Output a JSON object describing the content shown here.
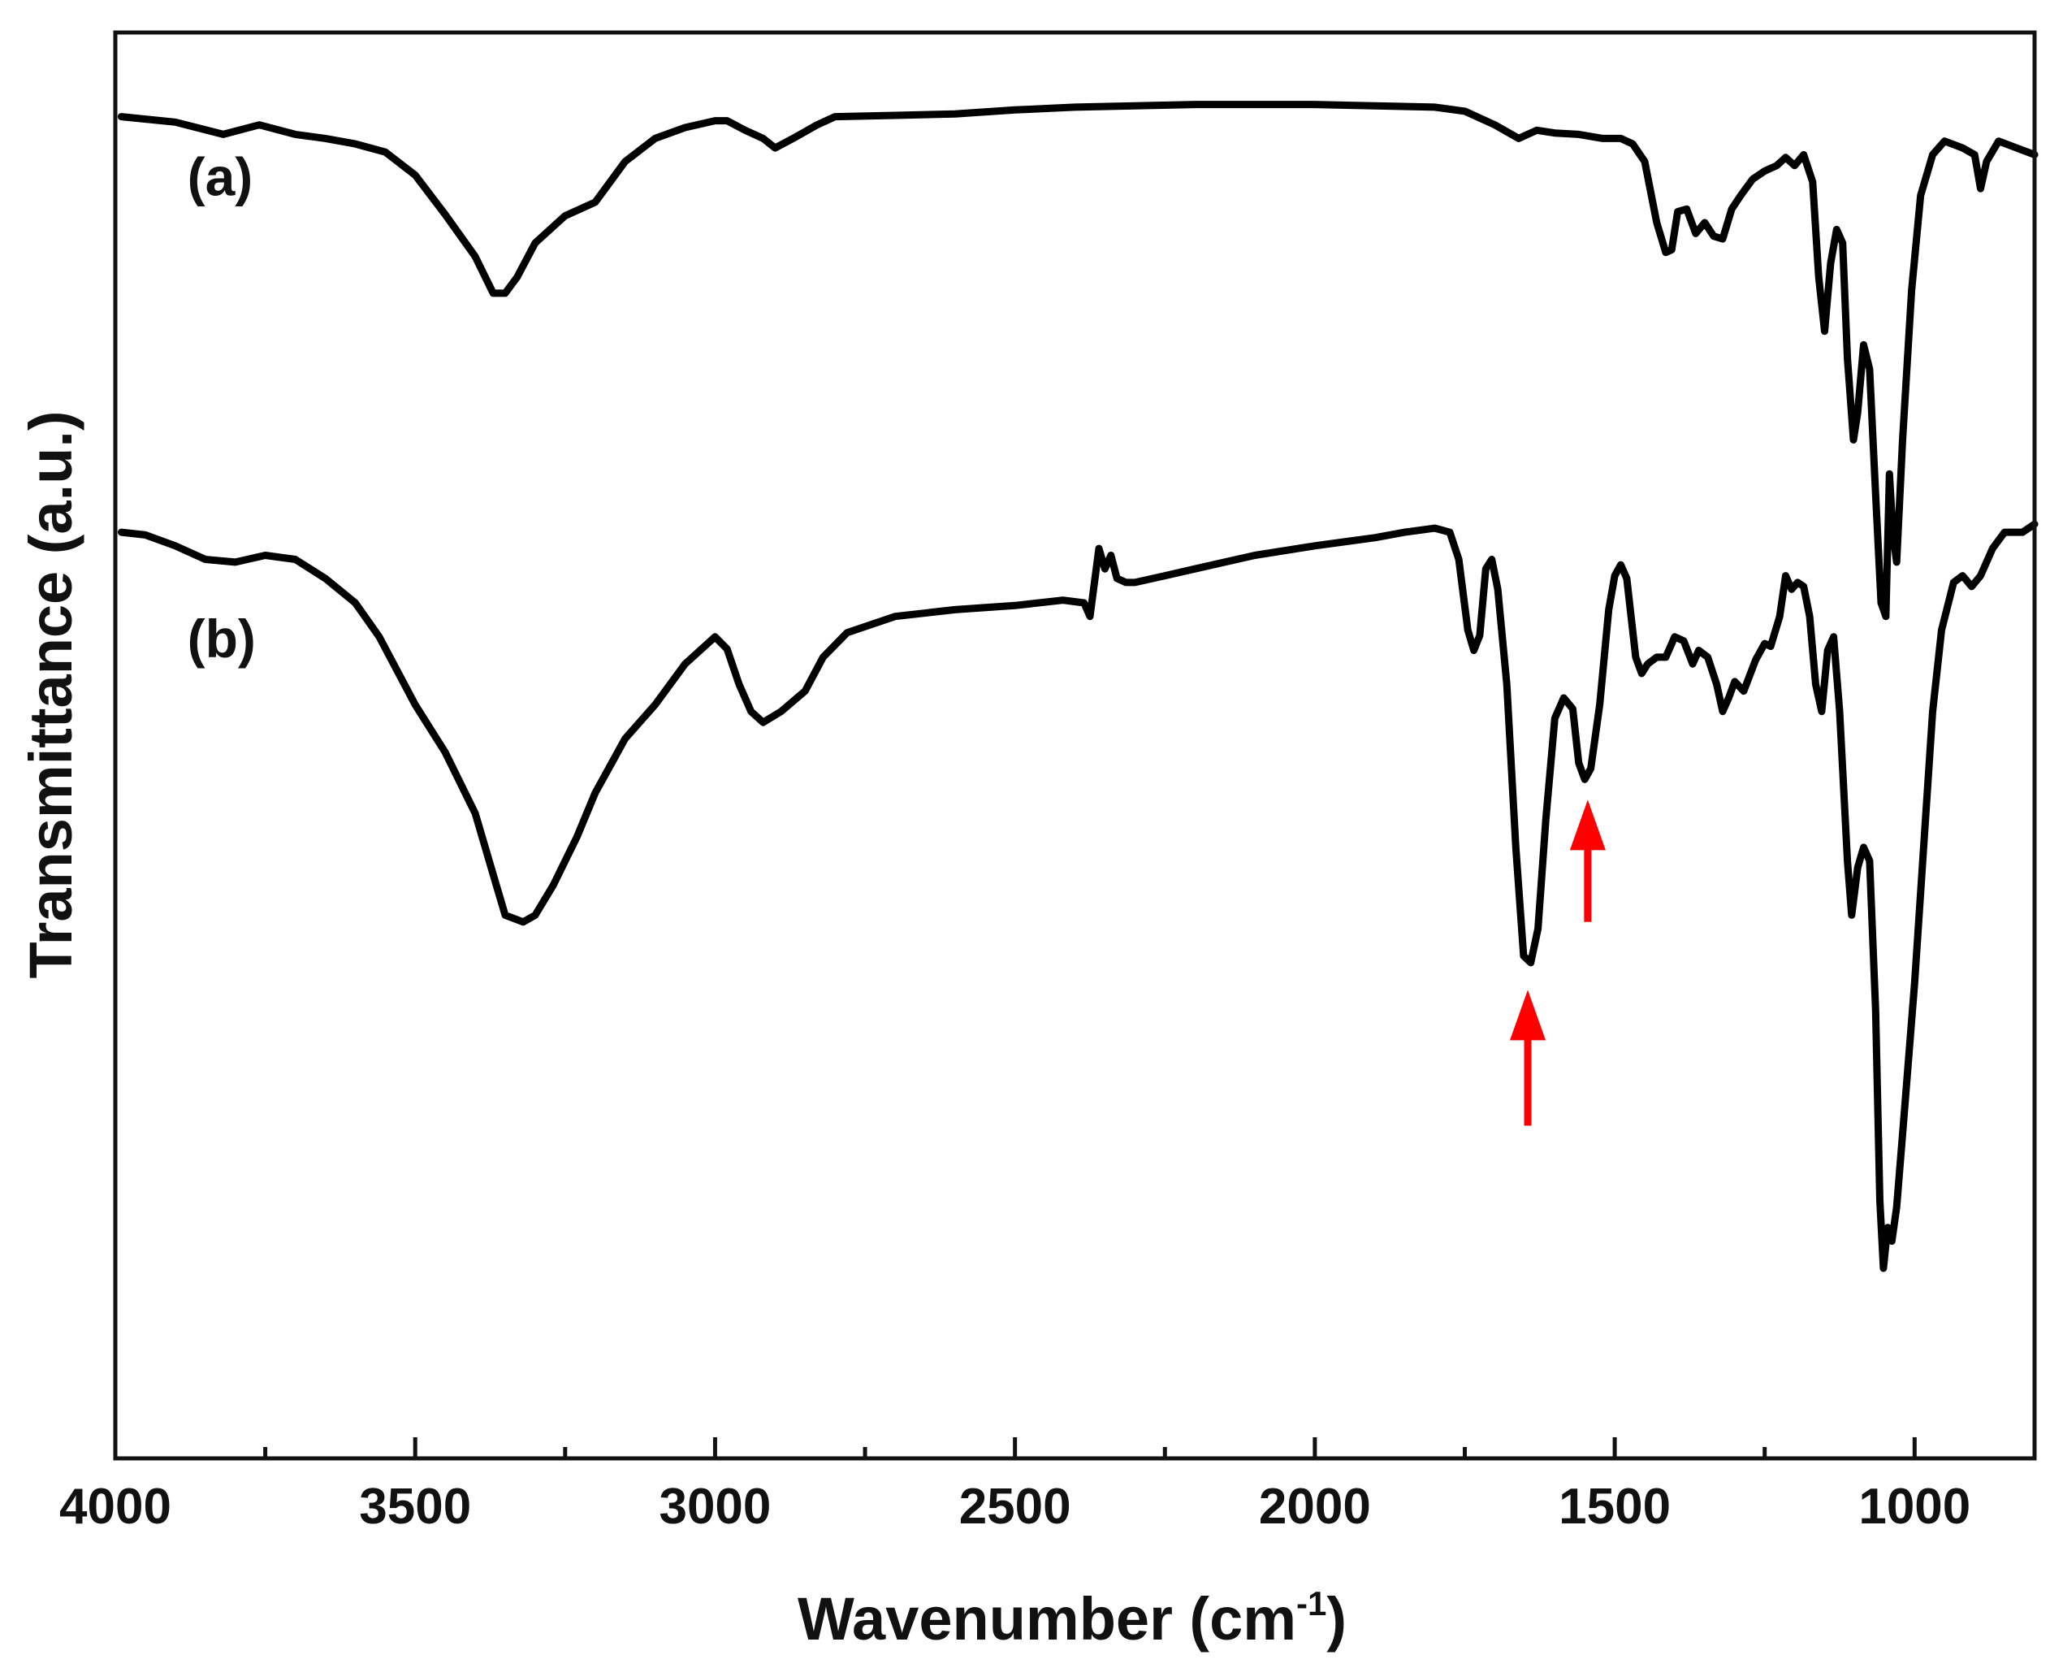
{
  "chart_data": {
    "type": "line",
    "title": "",
    "xlabel": "Wavenumber (cm",
    "xlabel_superscript": "-1",
    "xlabel_close": ")",
    "ylabel": "Transmittance (a.u.)",
    "xlim": [
      4000,
      800
    ],
    "x_reversed": true,
    "ylim": [
      -0.05,
      1.0
    ],
    "y_ticks_shown": false,
    "grid": false,
    "x_ticks": [
      {
        "value": 4000,
        "label": "4000"
      },
      {
        "value": 3500,
        "label": "3500"
      },
      {
        "value": 3000,
        "label": "3000"
      },
      {
        "value": 2500,
        "label": "2500"
      },
      {
        "value": 2000,
        "label": "2000"
      },
      {
        "value": 1500,
        "label": "1500"
      },
      {
        "value": 1000,
        "label": "1000"
      }
    ],
    "x_minor_ticks": [
      3750,
      3250,
      2750,
      2250,
      1750,
      1250
    ],
    "curve_labels": [
      {
        "text": "(a)",
        "x": 3880,
        "y": 0.88
      },
      {
        "text": "(b)",
        "x": 3880,
        "y": 0.54
      }
    ],
    "series": [
      {
        "id": "a",
        "color": "#000000",
        "points": [
          [
            3990,
            0.938
          ],
          [
            3900,
            0.934
          ],
          [
            3820,
            0.925
          ],
          [
            3760,
            0.932
          ],
          [
            3700,
            0.925
          ],
          [
            3650,
            0.922
          ],
          [
            3600,
            0.918
          ],
          [
            3550,
            0.912
          ],
          [
            3500,
            0.895
          ],
          [
            3450,
            0.866
          ],
          [
            3400,
            0.835
          ],
          [
            3370,
            0.808
          ],
          [
            3350,
            0.808
          ],
          [
            3330,
            0.82
          ],
          [
            3300,
            0.845
          ],
          [
            3250,
            0.865
          ],
          [
            3200,
            0.875
          ],
          [
            3150,
            0.905
          ],
          [
            3100,
            0.922
          ],
          [
            3050,
            0.93
          ],
          [
            3000,
            0.935
          ],
          [
            2980,
            0.935
          ],
          [
            2950,
            0.928
          ],
          [
            2920,
            0.922
          ],
          [
            2900,
            0.915
          ],
          [
            2870,
            0.922
          ],
          [
            2830,
            0.932
          ],
          [
            2800,
            0.938
          ],
          [
            2700,
            0.939
          ],
          [
            2600,
            0.94
          ],
          [
            2500,
            0.943
          ],
          [
            2400,
            0.945
          ],
          [
            2300,
            0.946
          ],
          [
            2200,
            0.947
          ],
          [
            2100,
            0.947
          ],
          [
            2000,
            0.947
          ],
          [
            1900,
            0.946
          ],
          [
            1800,
            0.945
          ],
          [
            1750,
            0.942
          ],
          [
            1700,
            0.932
          ],
          [
            1660,
            0.922
          ],
          [
            1630,
            0.928
          ],
          [
            1600,
            0.926
          ],
          [
            1560,
            0.925
          ],
          [
            1520,
            0.922
          ],
          [
            1490,
            0.922
          ],
          [
            1470,
            0.918
          ],
          [
            1450,
            0.905
          ],
          [
            1430,
            0.86
          ],
          [
            1415,
            0.838
          ],
          [
            1405,
            0.84
          ],
          [
            1395,
            0.868
          ],
          [
            1380,
            0.87
          ],
          [
            1365,
            0.852
          ],
          [
            1350,
            0.86
          ],
          [
            1335,
            0.85
          ],
          [
            1320,
            0.848
          ],
          [
            1305,
            0.87
          ],
          [
            1290,
            0.88
          ],
          [
            1270,
            0.892
          ],
          [
            1250,
            0.898
          ],
          [
            1230,
            0.902
          ],
          [
            1215,
            0.908
          ],
          [
            1200,
            0.902
          ],
          [
            1185,
            0.91
          ],
          [
            1170,
            0.89
          ],
          [
            1160,
            0.82
          ],
          [
            1150,
            0.78
          ],
          [
            1140,
            0.83
          ],
          [
            1130,
            0.855
          ],
          [
            1120,
            0.845
          ],
          [
            1112,
            0.76
          ],
          [
            1102,
            0.7
          ],
          [
            1095,
            0.72
          ],
          [
            1085,
            0.77
          ],
          [
            1075,
            0.752
          ],
          [
            1065,
            0.66
          ],
          [
            1056,
            0.58
          ],
          [
            1048,
            0.57
          ],
          [
            1042,
            0.675
          ],
          [
            1036,
            0.63
          ],
          [
            1030,
            0.61
          ],
          [
            1020,
            0.7
          ],
          [
            1005,
            0.81
          ],
          [
            990,
            0.88
          ],
          [
            970,
            0.91
          ],
          [
            950,
            0.92
          ],
          [
            920,
            0.915
          ],
          [
            900,
            0.91
          ],
          [
            890,
            0.885
          ],
          [
            880,
            0.905
          ],
          [
            860,
            0.92
          ],
          [
            830,
            0.915
          ],
          [
            800,
            0.91
          ]
        ]
      },
      {
        "id": "b",
        "color": "#000000",
        "points": [
          [
            3990,
            0.632
          ],
          [
            3950,
            0.63
          ],
          [
            3900,
            0.622
          ],
          [
            3850,
            0.612
          ],
          [
            3800,
            0.61
          ],
          [
            3750,
            0.615
          ],
          [
            3700,
            0.612
          ],
          [
            3650,
            0.598
          ],
          [
            3600,
            0.58
          ],
          [
            3560,
            0.555
          ],
          [
            3500,
            0.505
          ],
          [
            3450,
            0.47
          ],
          [
            3400,
            0.425
          ],
          [
            3370,
            0.38
          ],
          [
            3350,
            0.35
          ],
          [
            3320,
            0.345
          ],
          [
            3300,
            0.35
          ],
          [
            3270,
            0.372
          ],
          [
            3230,
            0.408
          ],
          [
            3200,
            0.44
          ],
          [
            3150,
            0.48
          ],
          [
            3100,
            0.505
          ],
          [
            3050,
            0.535
          ],
          [
            3000,
            0.555
          ],
          [
            2980,
            0.546
          ],
          [
            2960,
            0.52
          ],
          [
            2940,
            0.5
          ],
          [
            2920,
            0.492
          ],
          [
            2890,
            0.5
          ],
          [
            2850,
            0.515
          ],
          [
            2820,
            0.54
          ],
          [
            2780,
            0.558
          ],
          [
            2700,
            0.57
          ],
          [
            2600,
            0.575
          ],
          [
            2500,
            0.578
          ],
          [
            2420,
            0.582
          ],
          [
            2385,
            0.58
          ],
          [
            2375,
            0.57
          ],
          [
            2360,
            0.62
          ],
          [
            2350,
            0.605
          ],
          [
            2340,
            0.615
          ],
          [
            2330,
            0.598
          ],
          [
            2315,
            0.595
          ],
          [
            2300,
            0.595
          ],
          [
            2250,
            0.6
          ],
          [
            2200,
            0.605
          ],
          [
            2100,
            0.615
          ],
          [
            2000,
            0.622
          ],
          [
            1900,
            0.628
          ],
          [
            1850,
            0.632
          ],
          [
            1800,
            0.635
          ],
          [
            1775,
            0.632
          ],
          [
            1760,
            0.612
          ],
          [
            1745,
            0.56
          ],
          [
            1735,
            0.545
          ],
          [
            1725,
            0.556
          ],
          [
            1715,
            0.605
          ],
          [
            1705,
            0.612
          ],
          [
            1695,
            0.59
          ],
          [
            1680,
            0.52
          ],
          [
            1665,
            0.4
          ],
          [
            1652,
            0.32
          ],
          [
            1640,
            0.315
          ],
          [
            1628,
            0.34
          ],
          [
            1615,
            0.42
          ],
          [
            1600,
            0.495
          ],
          [
            1585,
            0.51
          ],
          [
            1570,
            0.502
          ],
          [
            1560,
            0.462
          ],
          [
            1550,
            0.45
          ],
          [
            1540,
            0.458
          ],
          [
            1525,
            0.505
          ],
          [
            1510,
            0.575
          ],
          [
            1500,
            0.6
          ],
          [
            1490,
            0.608
          ],
          [
            1480,
            0.598
          ],
          [
            1465,
            0.54
          ],
          [
            1455,
            0.528
          ],
          [
            1445,
            0.535
          ],
          [
            1430,
            0.54
          ],
          [
            1415,
            0.54
          ],
          [
            1400,
            0.555
          ],
          [
            1385,
            0.552
          ],
          [
            1370,
            0.535
          ],
          [
            1360,
            0.545
          ],
          [
            1345,
            0.54
          ],
          [
            1330,
            0.52
          ],
          [
            1320,
            0.5
          ],
          [
            1310,
            0.51
          ],
          [
            1300,
            0.522
          ],
          [
            1285,
            0.515
          ],
          [
            1265,
            0.538
          ],
          [
            1250,
            0.55
          ],
          [
            1240,
            0.548
          ],
          [
            1225,
            0.57
          ],
          [
            1215,
            0.6
          ],
          [
            1205,
            0.59
          ],
          [
            1195,
            0.595
          ],
          [
            1185,
            0.592
          ],
          [
            1175,
            0.57
          ],
          [
            1165,
            0.52
          ],
          [
            1155,
            0.5
          ],
          [
            1145,
            0.545
          ],
          [
            1135,
            0.555
          ],
          [
            1125,
            0.5
          ],
          [
            1112,
            0.39
          ],
          [
            1105,
            0.35
          ],
          [
            1095,
            0.385
          ],
          [
            1085,
            0.4
          ],
          [
            1075,
            0.39
          ],
          [
            1065,
            0.28
          ],
          [
            1058,
            0.14
          ],
          [
            1052,
            0.09
          ],
          [
            1045,
            0.12
          ],
          [
            1038,
            0.11
          ],
          [
            1030,
            0.135
          ],
          [
            1018,
            0.2
          ],
          [
            1000,
            0.3
          ],
          [
            985,
            0.4
          ],
          [
            970,
            0.5
          ],
          [
            955,
            0.56
          ],
          [
            935,
            0.595
          ],
          [
            920,
            0.6
          ],
          [
            905,
            0.592
          ],
          [
            890,
            0.6
          ],
          [
            870,
            0.62
          ],
          [
            850,
            0.632
          ],
          [
            820,
            0.632
          ],
          [
            800,
            0.638
          ]
        ]
      }
    ],
    "annotations": [
      {
        "type": "arrow",
        "direction": "up",
        "color": "#ff0000",
        "x": 1645,
        "y_tail": 0.195,
        "y_head": 0.295
      },
      {
        "type": "arrow",
        "direction": "up",
        "color": "#ff0000",
        "x": 1545,
        "y_tail": 0.345,
        "y_head": 0.435
      }
    ]
  }
}
